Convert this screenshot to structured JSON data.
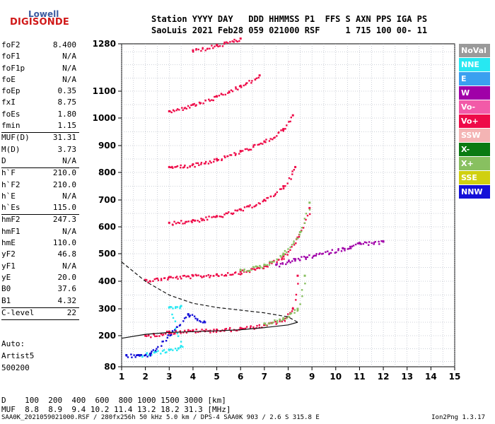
{
  "logo": {
    "top": "Lowell",
    "bottom": "DIGISONDE"
  },
  "header": {
    "line1": "Station YYYY DAY   DDD HHMMSS P1  FFS S AXN PPS IGA PS",
    "line2": "SaoLuis 2021 Feb28 059 021000 RSF     1 715 100 00- 11"
  },
  "params": [
    {
      "k": "foF2",
      "v": "8.400"
    },
    {
      "k": "foF1",
      "v": "N/A"
    },
    {
      "k": "foF1p",
      "v": "N/A"
    },
    {
      "k": "foE",
      "v": "N/A"
    },
    {
      "k": "foEp",
      "v": "0.35"
    },
    {
      "k": "fxI",
      "v": "8.75"
    },
    {
      "k": "foEs",
      "v": "1.80"
    },
    {
      "k": "fmin",
      "v": "1.15"
    },
    {
      "sep": true
    },
    {
      "k": "MUF(D)",
      "v": "31.31"
    },
    {
      "k": "M(D)",
      "v": "3.73"
    },
    {
      "k": "D",
      "v": "N/A"
    },
    {
      "sep": true
    },
    {
      "k": "h`F",
      "v": "210.0"
    },
    {
      "k": "h`F2",
      "v": "210.0"
    },
    {
      "k": "h`E",
      "v": "N/A"
    },
    {
      "k": "h`Es",
      "v": "115.0"
    },
    {
      "sep": true
    },
    {
      "k": "hmF2",
      "v": "247.3"
    },
    {
      "k": "hmF1",
      "v": "N/A"
    },
    {
      "k": "hmE",
      "v": "110.0"
    },
    {
      "k": "yF2",
      "v": "46.8"
    },
    {
      "k": "yF1",
      "v": "N/A"
    },
    {
      "k": "yE",
      "v": "20.0"
    },
    {
      "k": "B0",
      "v": "37.6"
    },
    {
      "k": "B1",
      "v": "4.32"
    },
    {
      "sep": true
    },
    {
      "k": "C-level",
      "v": "22"
    },
    {
      "sep": true
    }
  ],
  "auto": [
    "Auto:",
    "Artist5",
    "500200"
  ],
  "legend": [
    {
      "label": "NoVal",
      "color": "#9a9a9a"
    },
    {
      "label": "NNE",
      "color": "#27e8f2"
    },
    {
      "label": "E",
      "color": "#3aa0f0"
    },
    {
      "label": "W",
      "color": "#a000a8"
    },
    {
      "label": "Vo-",
      "color": "#f25aa8"
    },
    {
      "label": "Vo+",
      "color": "#ee0a48"
    },
    {
      "label": "SSW",
      "color": "#f4b4b4"
    },
    {
      "label": "X-",
      "color": "#0a7a12"
    },
    {
      "label": "X+",
      "color": "#88c060"
    },
    {
      "label": "SSE",
      "color": "#d0d010"
    },
    {
      "label": "NNW",
      "color": "#1410d8"
    }
  ],
  "bottom": {
    "line1": "D    100  200  400  600  800 1000 1500 3000 [km]",
    "line2": "MUF  8.8  8.9  9.4 10.2 11.4 13.2 18.2 31.3 [MHz]"
  },
  "footer": "SAA0K_2021059021000.RSF / 280fx256h 50 kHz 5.0 km / DPS-4 SAA0K 903 / 2.6 S 315.8 E",
  "version": "Ion2Png 1.3.17",
  "chart_data": {
    "type": "scatter",
    "xlim": [
      1,
      15
    ],
    "x_ticks": [
      1,
      2,
      3,
      4,
      5,
      6,
      7,
      8,
      9,
      10,
      11,
      12,
      13,
      14,
      15
    ],
    "y_ticks": [
      80,
      200,
      300,
      400,
      500,
      600,
      700,
      800,
      900,
      1000,
      1100,
      1280
    ],
    "grid": true,
    "series": [
      {
        "name": "Vo+",
        "color": "#ee0a48",
        "points": [
          [
            2.0,
            405
          ],
          [
            3.0,
            415
          ],
          [
            4.0,
            420
          ],
          [
            5.0,
            425
          ],
          [
            6.0,
            435
          ],
          [
            7.0,
            455
          ],
          [
            7.8,
            490
          ],
          [
            8.4,
            560
          ],
          [
            8.9,
            670
          ]
        ]
      },
      {
        "name": "Vo+",
        "color": "#ee0a48",
        "points": [
          [
            2.0,
            200
          ],
          [
            3.0,
            215
          ],
          [
            4.0,
            220
          ],
          [
            5.0,
            222
          ],
          [
            6.0,
            228
          ],
          [
            7.0,
            240
          ],
          [
            7.8,
            260
          ],
          [
            8.2,
            300
          ],
          [
            8.4,
            420
          ]
        ]
      },
      {
        "name": "Vo+",
        "color": "#ee0a48",
        "points": [
          [
            3.0,
            615
          ],
          [
            4.0,
            625
          ],
          [
            5.0,
            640
          ],
          [
            6.0,
            665
          ],
          [
            7.0,
            700
          ],
          [
            7.8,
            750
          ],
          [
            8.3,
            820
          ]
        ]
      },
      {
        "name": "Vo+",
        "color": "#ee0a48",
        "points": [
          [
            3.0,
            820
          ],
          [
            4.0,
            830
          ],
          [
            5.0,
            850
          ],
          [
            6.0,
            880
          ],
          [
            7.0,
            915
          ],
          [
            7.8,
            960
          ],
          [
            8.2,
            1010
          ]
        ]
      },
      {
        "name": "Vo+",
        "color": "#ee0a48",
        "points": [
          [
            3.0,
            1025
          ],
          [
            4.0,
            1050
          ],
          [
            5.0,
            1080
          ],
          [
            6.0,
            1120
          ],
          [
            6.8,
            1160
          ]
        ]
      },
      {
        "name": "Vo+",
        "color": "#ee0a48",
        "points": [
          [
            4.0,
            1255
          ],
          [
            5.0,
            1275
          ],
          [
            6.0,
            1300
          ]
        ]
      },
      {
        "name": "X+",
        "color": "#88c060",
        "points": [
          [
            6.0,
            440
          ],
          [
            7.0,
            460
          ],
          [
            7.8,
            500
          ],
          [
            8.5,
            580
          ],
          [
            8.9,
            690
          ]
        ]
      },
      {
        "name": "X+",
        "color": "#88c060",
        "points": [
          [
            7.0,
            245
          ],
          [
            7.8,
            265
          ],
          [
            8.4,
            300
          ],
          [
            8.7,
            420
          ]
        ]
      },
      {
        "name": "NNE",
        "color": "#27e8f2",
        "points": [
          [
            1.8,
            125
          ],
          [
            2.4,
            138
          ],
          [
            3.0,
            145
          ],
          [
            3.5,
            160
          ],
          [
            3.0,
            305
          ],
          [
            3.5,
            310
          ]
        ]
      },
      {
        "name": "NNW",
        "color": "#1410d8",
        "points": [
          [
            1.2,
            125
          ],
          [
            1.7,
            125
          ],
          [
            2.2,
            130
          ],
          [
            3.8,
            280
          ],
          [
            4.5,
            250
          ]
        ]
      },
      {
        "name": "W",
        "color": "#a000a8",
        "points": [
          [
            7.5,
            460
          ],
          [
            8.3,
            480
          ],
          [
            10.3,
            520
          ],
          [
            11.0,
            540
          ],
          [
            12.0,
            545
          ]
        ]
      }
    ],
    "profile_curves": [
      {
        "points": [
          [
            1,
            470
          ],
          [
            2,
            400
          ],
          [
            3,
            350
          ],
          [
            4,
            320
          ],
          [
            5,
            305
          ],
          [
            6,
            295
          ],
          [
            7,
            285
          ],
          [
            8,
            270
          ],
          [
            8.4,
            250
          ]
        ]
      },
      {
        "points": [
          [
            1,
            190
          ],
          [
            2,
            205
          ],
          [
            3,
            212
          ],
          [
            4,
            215
          ],
          [
            5,
            218
          ],
          [
            6,
            222
          ],
          [
            7,
            230
          ],
          [
            8,
            240
          ],
          [
            8.4,
            250
          ]
        ]
      }
    ]
  }
}
